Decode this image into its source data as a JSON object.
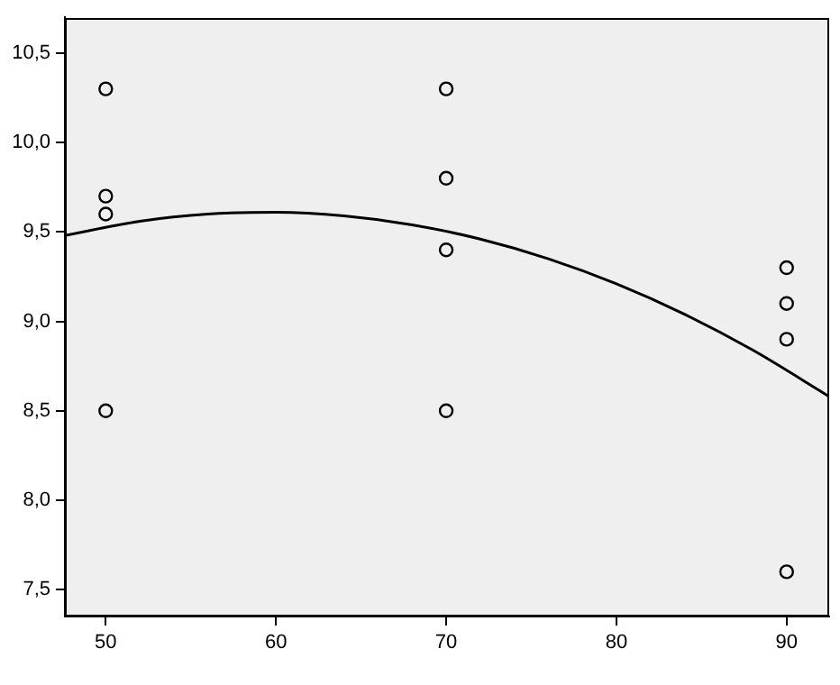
{
  "chart_data": {
    "type": "scatter",
    "xlim": [
      47.6,
      92.5
    ],
    "xticks": [
      50,
      60,
      70,
      80,
      90
    ],
    "ylim": [
      7.35,
      10.7
    ],
    "yticks": [
      {
        "value": 7.5,
        "label": "7,5"
      },
      {
        "value": 8,
        "label": "8,0"
      },
      {
        "value": 8.5,
        "label": "8,5"
      },
      {
        "value": 9,
        "label": "9,0"
      },
      {
        "value": 9.5,
        "label": "9,5"
      },
      {
        "value": 10,
        "label": "10,0"
      },
      {
        "value": 10.5,
        "label": "10,5"
      }
    ],
    "series": [
      {
        "color": "#000000",
        "marker": "circle",
        "x": [
          50,
          50,
          50,
          50,
          70,
          70,
          70,
          70,
          90,
          90,
          90,
          90
        ],
        "values": [
          10.3,
          9.7,
          9.6,
          8.5,
          10.3,
          9.8,
          9.4,
          8.5,
          9.3,
          9.1,
          8.9,
          7.6
        ]
      },
      {
        "type": "line",
        "color": "#000000",
        "marker": "none",
        "x": [
          47.6,
          52,
          56,
          60,
          64,
          68,
          72,
          76,
          80,
          84,
          88,
          92.5
        ],
        "values": [
          9.48,
          9.56,
          9.6,
          9.61,
          9.59,
          9.54,
          9.46,
          9.35,
          9.21,
          9.04,
          8.84,
          8.58
        ]
      }
    ]
  }
}
